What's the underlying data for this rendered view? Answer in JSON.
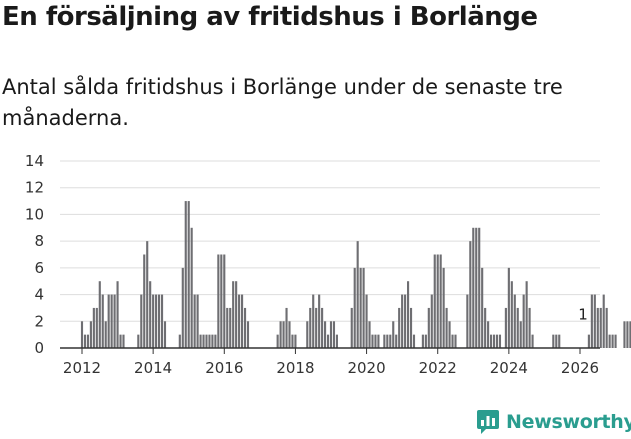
{
  "title": "En försäljning av fritidshus i Borlänge",
  "subtitle": "Antal sålda fritidshus i Borlänge under de senaste tre månaderna.",
  "brand": {
    "name": "Newsworthy",
    "icon": "newsworthy-logo-icon"
  },
  "colors": {
    "bar": "#6e6e72",
    "highlight": "#2a9d8f",
    "grid": "#dddddd",
    "axis": "#333333"
  },
  "chart_data": {
    "type": "bar",
    "title": "En försäljning av fritidshus i Borlänge",
    "xlabel": "",
    "ylabel": "",
    "ylim": [
      0,
      14
    ],
    "yticks": [
      0,
      2,
      4,
      6,
      8,
      10,
      12,
      14
    ],
    "xticks": [
      "2012",
      "2014",
      "2016",
      "2018",
      "2020",
      "2022",
      "2024",
      "2026"
    ],
    "grid": true,
    "start": "2012-01",
    "end": "2026-02",
    "series": [
      {
        "name": "Antal sålda fritidshus (rullande 3 mån)",
        "values": [
          2,
          1,
          1,
          2,
          3,
          3,
          5,
          4,
          2,
          4,
          4,
          4,
          5,
          1,
          1,
          0,
          0,
          0,
          0,
          1,
          4,
          7,
          8,
          5,
          4,
          4,
          4,
          4,
          2,
          0,
          0,
          0,
          0,
          1,
          6,
          11,
          11,
          9,
          4,
          4,
          1,
          1,
          1,
          1,
          1,
          1,
          7,
          7,
          7,
          3,
          3,
          5,
          5,
          4,
          4,
          3,
          2,
          0,
          0,
          0,
          0,
          0,
          0,
          0,
          0,
          0,
          1,
          2,
          2,
          3,
          2,
          1,
          1,
          0,
          0,
          0,
          2,
          3,
          4,
          3,
          4,
          3,
          2,
          1,
          2,
          2,
          1,
          0,
          0,
          0,
          0,
          3,
          6,
          8,
          6,
          6,
          4,
          2,
          1,
          1,
          1,
          0,
          1,
          1,
          1,
          2,
          1,
          3,
          4,
          4,
          5,
          3,
          1,
          0,
          0,
          1,
          1,
          3,
          4,
          7,
          7,
          7,
          6,
          3,
          2,
          1,
          1,
          0,
          0,
          0,
          4,
          8,
          9,
          9,
          9,
          6,
          3,
          2,
          1,
          1,
          1,
          1,
          0,
          3,
          6,
          5,
          4,
          3,
          2,
          4,
          5,
          3,
          1,
          0,
          0,
          0,
          0,
          0,
          0,
          1,
          1,
          1,
          0,
          0,
          0,
          0,
          0,
          0,
          0,
          0,
          0,
          1,
          4,
          4,
          3,
          3,
          4,
          3,
          1,
          1,
          1,
          0,
          0,
          2,
          2,
          2,
          2,
          2,
          3,
          3,
          2,
          2,
          1,
          1
        ]
      }
    ],
    "annotations": [
      {
        "label": "1",
        "at": "2026-02",
        "value": 1
      }
    ]
  }
}
